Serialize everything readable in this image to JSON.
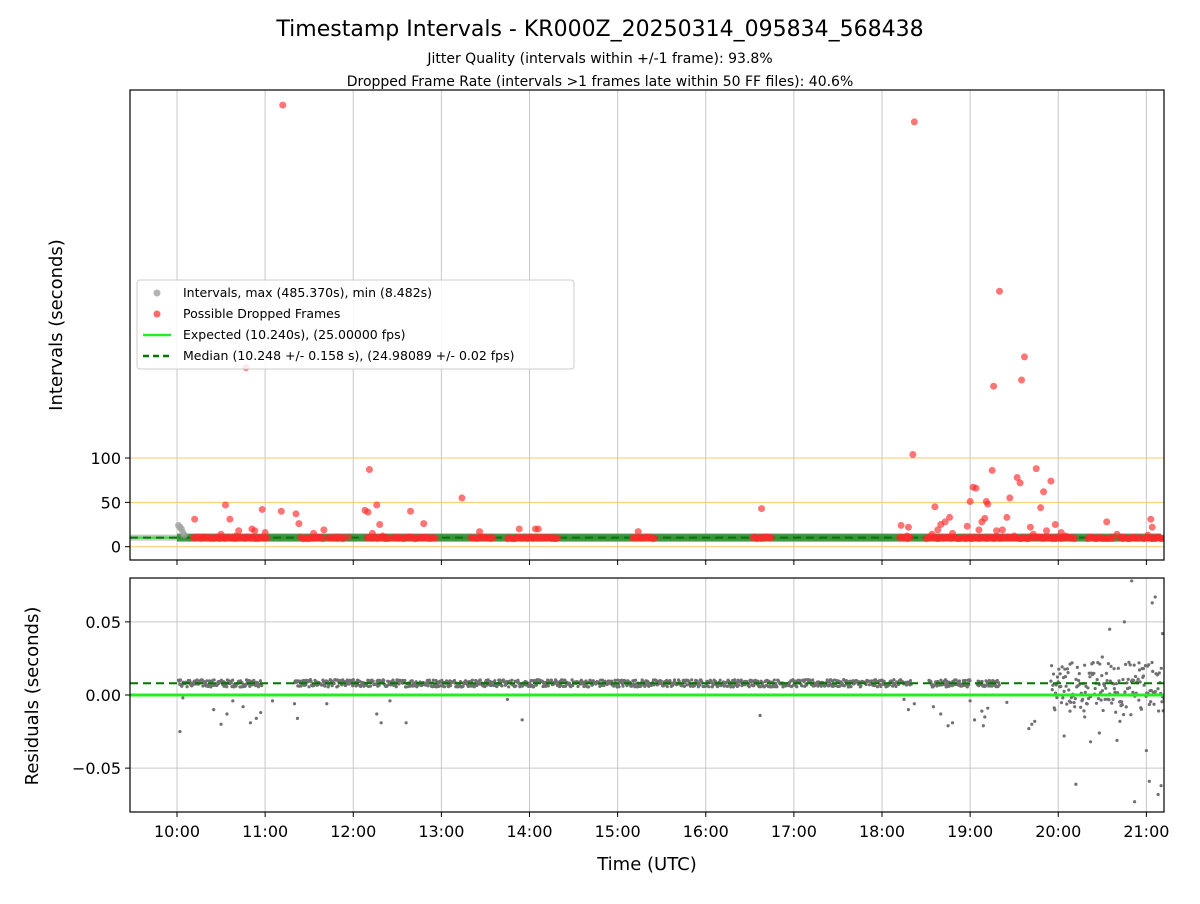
{
  "title": "Timestamp Intervals - KR000Z_20250314_095834_568438",
  "subtitle_line1": "Jitter Quality (intervals within +/-1 frame): 93.8%",
  "subtitle_line2": "Dropped Frame Rate (intervals >1 frames late within 50 FF files): 40.6%",
  "colors": {
    "intervals": "#a0a0a0",
    "dropped": "#ff2a2a",
    "expected": "#22ee22",
    "median": "#007700",
    "threshold": "#ffc766",
    "grid": "#c8c8c8",
    "residuals": "#707070"
  },
  "chart_data": [
    {
      "type": "scatter",
      "panel": "intervals",
      "ylabel": "Intervals (seconds)",
      "xlabel": "",
      "xlim": [
        "09:28",
        "21:12"
      ],
      "ylim": [
        -15,
        515
      ],
      "yticks": [
        0,
        50,
        100
      ],
      "ytick_labels": [
        "0",
        "50",
        "100"
      ],
      "threshold_lines": [
        0,
        50,
        100
      ],
      "expected_value": 10.24,
      "median_value": 10.248,
      "grid": true,
      "legend_placement": "center-left",
      "legend": [
        {
          "label": "Intervals, max (485.370s), min (8.482s)",
          "kind": "intervals"
        },
        {
          "label": "Possible Dropped Frames",
          "kind": "dropped"
        },
        {
          "label": "Expected (10.240s), (25.00000 fps)",
          "kind": "expected"
        },
        {
          "label": "Median (10.248 +/- 0.158 s), (24.98089 +/- 0.02 fps)",
          "kind": "median"
        }
      ],
      "series": [
        {
          "name": "Intervals, max (485.370s), min (8.482s)",
          "points": [
            [
              "10:01",
              24
            ],
            [
              "10:02",
              22
            ],
            [
              "10:03",
              20
            ],
            [
              "10:04",
              16
            ],
            [
              "10:05",
              13
            ]
          ]
        },
        {
          "name": "Possible Dropped Frames",
          "points": [
            [
              "10:12",
              31
            ],
            [
              "10:30",
              14
            ],
            [
              "10:33",
              47
            ],
            [
              "10:36",
              31
            ],
            [
              "10:40",
              12
            ],
            [
              "10:42",
              18
            ],
            [
              "10:47",
              202
            ],
            [
              "10:51",
              20
            ],
            [
              "10:53",
              18
            ],
            [
              "10:56",
              10
            ],
            [
              "10:58",
              42
            ],
            [
              "11:00",
              16
            ],
            [
              "11:11",
              40
            ],
            [
              "11:12",
              498
            ],
            [
              "11:21",
              37
            ],
            [
              "11:23",
              26
            ],
            [
              "11:33",
              15
            ],
            [
              "11:40",
              19
            ],
            [
              "11:57",
              11
            ],
            [
              "12:08",
              41
            ],
            [
              "12:10",
              39
            ],
            [
              "12:11",
              87
            ],
            [
              "12:13",
              15
            ],
            [
              "12:16",
              47
            ],
            [
              "12:18",
              25
            ],
            [
              "12:20",
              12
            ],
            [
              "12:39",
              40
            ],
            [
              "12:48",
              26
            ],
            [
              "13:14",
              55
            ],
            [
              "13:26",
              17
            ],
            [
              "13:53",
              20
            ],
            [
              "14:04",
              20
            ],
            [
              "14:06",
              20
            ],
            [
              "15:14",
              17
            ],
            [
              "16:38",
              43
            ],
            [
              "18:13",
              24
            ],
            [
              "18:17",
              12
            ],
            [
              "18:18",
              22
            ],
            [
              "18:21",
              104
            ],
            [
              "18:22",
              479
            ],
            [
              "18:34",
              14
            ],
            [
              "18:36",
              45
            ],
            [
              "18:38",
              19
            ],
            [
              "18:40",
              25
            ],
            [
              "18:43",
              28
            ],
            [
              "18:46",
              33
            ],
            [
              "18:48",
              15
            ],
            [
              "18:55",
              10
            ],
            [
              "18:58",
              23
            ],
            [
              "19:00",
              51
            ],
            [
              "19:02",
              67
            ],
            [
              "19:04",
              66
            ],
            [
              "19:06",
              19
            ],
            [
              "19:08",
              28
            ],
            [
              "19:10",
              32
            ],
            [
              "19:11",
              51
            ],
            [
              "19:12",
              48
            ],
            [
              "19:15",
              86
            ],
            [
              "19:16",
              181
            ],
            [
              "19:18",
              18
            ],
            [
              "19:20",
              288
            ],
            [
              "19:22",
              19
            ],
            [
              "19:25",
              33
            ],
            [
              "19:27",
              55
            ],
            [
              "19:30",
              12
            ],
            [
              "19:32",
              78
            ],
            [
              "19:34",
              72
            ],
            [
              "19:35",
              188
            ],
            [
              "19:37",
              214
            ],
            [
              "19:41",
              22
            ],
            [
              "19:43",
              14
            ],
            [
              "19:45",
              88
            ],
            [
              "19:48",
              44
            ],
            [
              "19:50",
              62
            ],
            [
              "19:52",
              18
            ],
            [
              "19:55",
              74
            ],
            [
              "19:58",
              25
            ],
            [
              "20:02",
              16
            ],
            [
              "20:05",
              12
            ],
            [
              "20:24",
              10
            ],
            [
              "20:33",
              28
            ],
            [
              "20:40",
              14
            ],
            [
              "21:01",
              13
            ],
            [
              "21:03",
              31
            ],
            [
              "21:04",
              22
            ]
          ]
        },
        {
          "name": "Expected (10.240s), (25.00000 fps)",
          "value": 10.24
        },
        {
          "name": "Median (10.248 +/- 0.158 s), (24.98089 +/- 0.02 fps)",
          "value": 10.248
        }
      ],
      "dense_bands": [
        {
          "name": "Possible Dropped Frames",
          "ranges": [
            [
              "10:11",
              "11:02"
            ],
            [
              "11:24",
              "11:40"
            ],
            [
              "11:43",
              "11:54"
            ],
            [
              "12:09",
              "12:25"
            ],
            [
              "12:27",
              "12:56"
            ],
            [
              "13:20",
              "13:36"
            ],
            [
              "13:45",
              "14:20"
            ],
            [
              "15:10",
              "15:26"
            ],
            [
              "16:32",
              "16:45"
            ],
            [
              "18:12",
              "18:20"
            ],
            [
              "18:30",
              "19:00"
            ],
            [
              "19:00",
              "20:12"
            ],
            [
              "20:20",
              "20:38"
            ],
            [
              "20:42",
              "20:56"
            ],
            [
              "20:58",
              "21:12"
            ]
          ]
        }
      ]
    },
    {
      "type": "scatter",
      "panel": "residuals",
      "ylabel": "Residuals (seconds)",
      "xlabel": "Time (UTC)",
      "xlim": [
        "09:28",
        "21:12"
      ],
      "ylim": [
        -0.08,
        0.08
      ],
      "yticks": [
        -0.05,
        0,
        0.05
      ],
      "ytick_labels": [
        "−0.05",
        "0.00",
        "0.05"
      ],
      "xticks": [
        "10:00",
        "11:00",
        "12:00",
        "13:00",
        "14:00",
        "15:00",
        "16:00",
        "17:00",
        "18:00",
        "19:00",
        "20:00",
        "21:00"
      ],
      "expected_value": 0,
      "median_value": 0.008,
      "grid": true,
      "series": [
        {
          "name": "Residuals",
          "points": [
            [
              "10:02",
              -0.025
            ],
            [
              "10:04",
              -0.002
            ],
            [
              "10:25",
              -0.01
            ],
            [
              "10:30",
              -0.02
            ],
            [
              "10:34",
              -0.013
            ],
            [
              "10:38",
              -0.004
            ],
            [
              "10:45",
              -0.008
            ],
            [
              "10:50",
              -0.019
            ],
            [
              "10:54",
              -0.016
            ],
            [
              "10:57",
              -0.012
            ],
            [
              "11:05",
              -0.004
            ],
            [
              "11:20",
              -0.006
            ],
            [
              "11:22",
              -0.016
            ],
            [
              "11:42",
              -0.006
            ],
            [
              "12:16",
              -0.013
            ],
            [
              "12:19",
              -0.019
            ],
            [
              "12:25",
              -0.004
            ],
            [
              "12:36",
              -0.019
            ],
            [
              "13:45",
              -0.003
            ],
            [
              "13:55",
              -0.017
            ],
            [
              "16:37",
              -0.014
            ],
            [
              "18:15",
              -0.003
            ],
            [
              "18:18",
              -0.01
            ],
            [
              "18:22",
              -0.006
            ],
            [
              "18:35",
              -0.008
            ],
            [
              "18:40",
              -0.013
            ],
            [
              "18:45",
              -0.021
            ],
            [
              "18:48",
              -0.019
            ],
            [
              "19:00",
              -0.004
            ],
            [
              "19:03",
              -0.017
            ],
            [
              "19:08",
              -0.011
            ],
            [
              "19:09",
              -0.021
            ],
            [
              "19:10",
              -0.015
            ],
            [
              "19:12",
              -0.009
            ],
            [
              "19:25",
              -0.005
            ],
            [
              "19:40",
              -0.023
            ],
            [
              "19:42",
              -0.02
            ],
            [
              "19:44",
              -0.018
            ],
            [
              "20:04",
              -0.028
            ],
            [
              "20:08",
              -0.011
            ],
            [
              "20:12",
              -0.061
            ],
            [
              "20:18",
              -0.015
            ],
            [
              "20:22",
              -0.032
            ],
            [
              "20:28",
              -0.026
            ],
            [
              "20:30",
              0.026
            ],
            [
              "20:35",
              0.045
            ],
            [
              "20:38",
              0.018
            ],
            [
              "20:40",
              -0.031
            ],
            [
              "20:42",
              -0.018
            ],
            [
              "20:45",
              0.05
            ],
            [
              "20:50",
              0.078
            ],
            [
              "20:52",
              -0.073
            ],
            [
              "20:55",
              0.022
            ],
            [
              "20:58",
              0.013
            ],
            [
              "21:00",
              -0.038
            ],
            [
              "21:02",
              -0.059
            ],
            [
              "21:04",
              0.063
            ],
            [
              "21:06",
              0.067
            ],
            [
              "21:08",
              -0.068
            ],
            [
              "21:10",
              -0.062
            ],
            [
              "21:11",
              0.042
            ]
          ]
        },
        {
          "name": "Expected (10.240s), (25.00000 fps)",
          "value": 0
        },
        {
          "name": "Median (10.248 +/- 0.158 s), (24.98089 +/- 0.02 fps)",
          "value": 0.008
        }
      ],
      "dense_bands": [
        {
          "name": "Residuals",
          "ranges": [
            [
              "10:01",
              "10:58"
            ],
            [
              "11:20",
              "18:20"
            ],
            [
              "18:32",
              "19:00"
            ],
            [
              "19:05",
              "19:20"
            ],
            [
              "19:55",
              "21:12"
            ]
          ],
          "center": 0.008,
          "spread": 0.005,
          "wide_after": "19:55"
        }
      ]
    }
  ]
}
